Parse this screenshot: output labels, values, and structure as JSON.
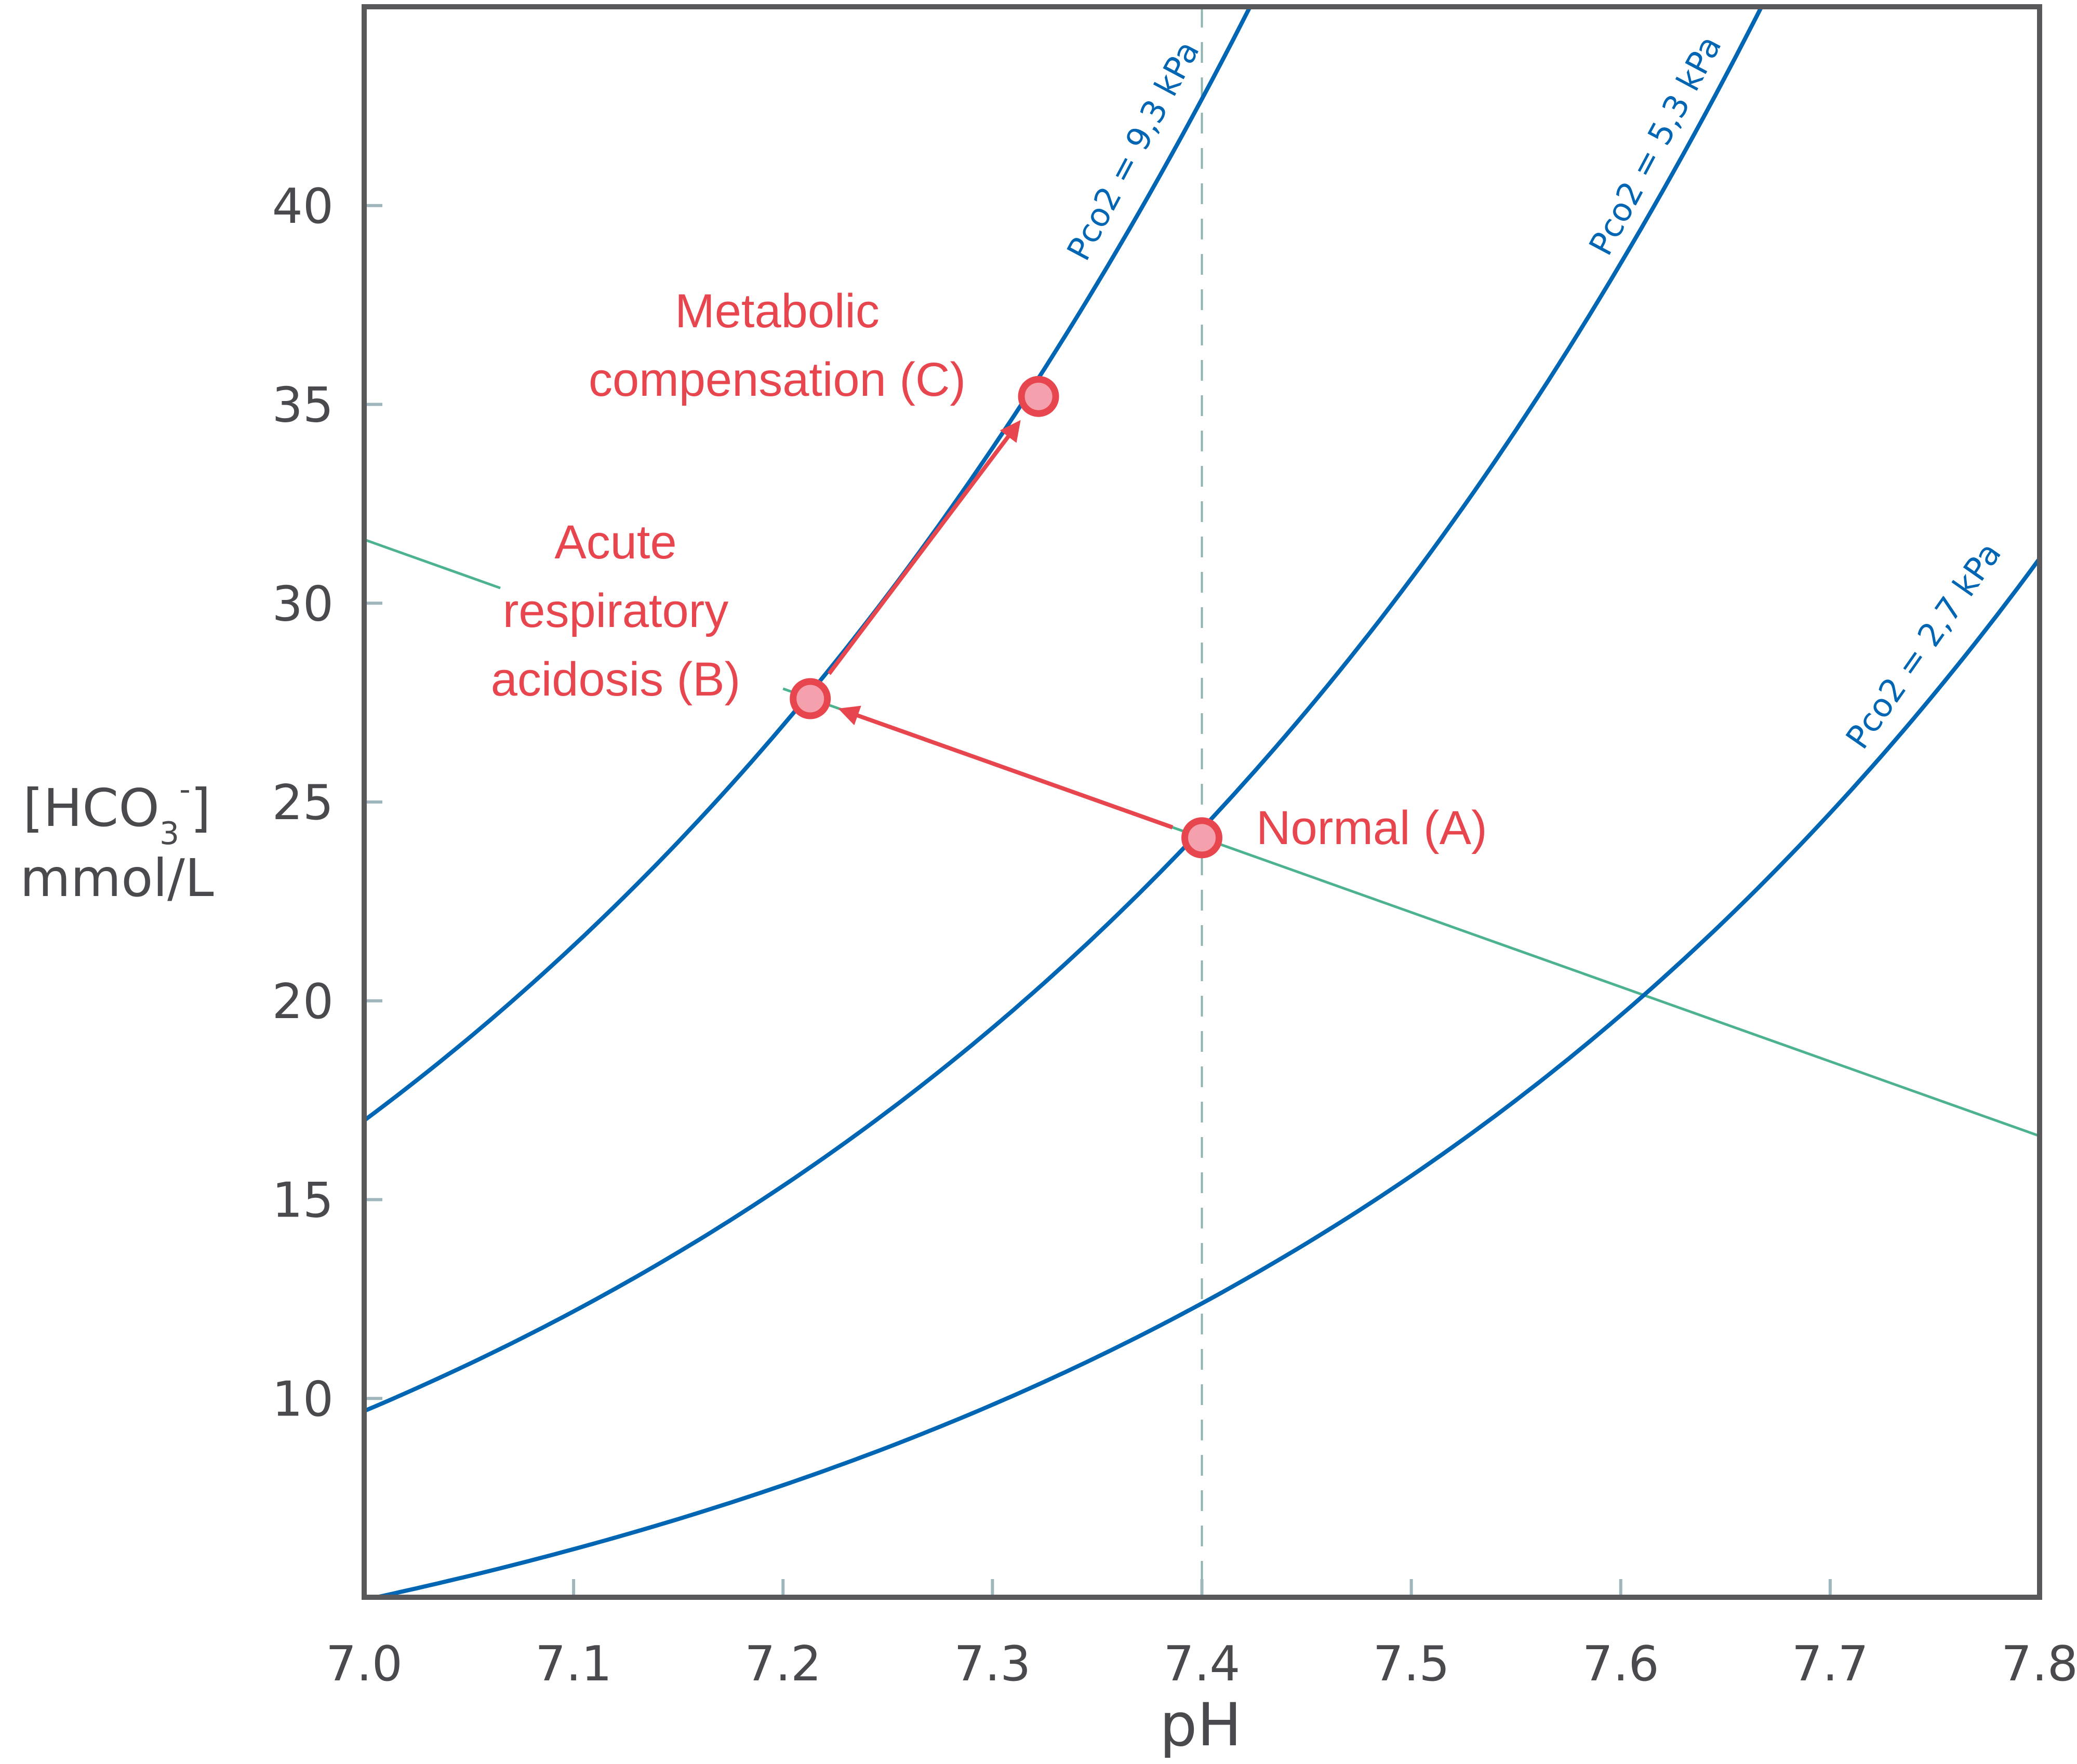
{
  "chart_data": {
    "type": "line",
    "title": "",
    "xlabel": "pH",
    "ylabel_line1": "[HCO",
    "ylabel_sub": "3",
    "ylabel_sup": "-",
    "ylabel_close": "]",
    "ylabel_line2": "mmol/L",
    "xlim": [
      7.0,
      7.8
    ],
    "ylim": [
      5,
      45
    ],
    "x_ticks": [
      "7.0",
      "7.1",
      "7.2",
      "7.3",
      "7.4",
      "7.5",
      "7.6",
      "7.7",
      "7.8"
    ],
    "y_ticks": [
      "10",
      "15",
      "20",
      "25",
      "30",
      "35",
      "40"
    ],
    "grid": false,
    "reference_line_ph": 7.4,
    "isopleth_coefficient": 0.23,
    "isopleth_pk": 6.1,
    "series": [
      {
        "name": "Pco2 = 9,3 kPa",
        "pco2_kpa": 9.3,
        "label": "Pco2 = 9,3 kPa",
        "color": "#0066b3"
      },
      {
        "name": "Pco2 = 5,3 kPa",
        "pco2_kpa": 5.3,
        "label": "Pco2 = 5,3 kPa",
        "color": "#0066b3"
      },
      {
        "name": "Pco2 = 2,7 kPa",
        "pco2_kpa": 2.7,
        "label": "Pco2 = 2,7 kPa",
        "color": "#0066b3"
      }
    ],
    "buffer_line": {
      "x": [
        7.0,
        7.8
      ],
      "y": [
        31.6,
        16.6
      ],
      "color": "#4db38f"
    },
    "points": [
      {
        "id": "A",
        "x": 7.4,
        "y": 24.1,
        "label_lines": [
          "Normal (A)"
        ]
      },
      {
        "id": "B",
        "x": 7.213,
        "y": 27.6,
        "label_lines": [
          "Acute",
          "respiratory",
          "acidosis (B)"
        ]
      },
      {
        "id": "C",
        "x": 7.322,
        "y": 35.2,
        "label_lines": [
          "Metabolic",
          "compensation (C)"
        ]
      }
    ],
    "arrows": [
      {
        "from": "A",
        "to": "B"
      },
      {
        "from": "B",
        "to": "C"
      }
    ],
    "annotation_color": "#e8464e",
    "point_fill": "#f4a0ad"
  }
}
